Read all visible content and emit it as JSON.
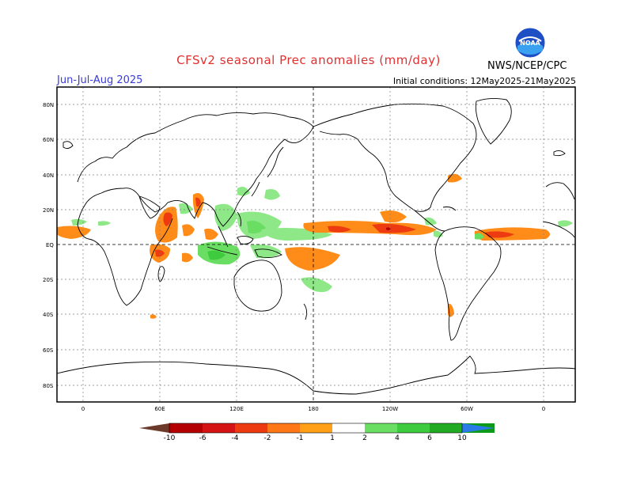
{
  "title": "CFSv2 seasonal Prec anomalies (mm/day)",
  "season": "Jun-Jul-Aug 2025",
  "initial_conditions": "Initial conditions: 12May2025-21May2025",
  "agency": "NWS/NCEP/CPC",
  "logo_text": "NOAA",
  "lat_labels": [
    "80N",
    "60N",
    "40N",
    "20N",
    "EQ",
    "20S",
    "40S",
    "60S",
    "80S"
  ],
  "lon_labels": [
    "0",
    "60E",
    "120E",
    "180",
    "120W",
    "60W",
    "0"
  ],
  "colorbar": {
    "labels": [
      "-10",
      "-6",
      "-4",
      "-2",
      "-1",
      "1",
      "2",
      "4",
      "6",
      "10"
    ],
    "colors": [
      "#6b3a2a",
      "#b40000",
      "#d41414",
      "#ee3a10",
      "#ff7818",
      "#ffa018",
      "#ffffff",
      "#98ee90",
      "#6ade62",
      "#3ecc3e",
      "#22aa22",
      "#0e9a18",
      "#2a7ae8"
    ]
  }
}
